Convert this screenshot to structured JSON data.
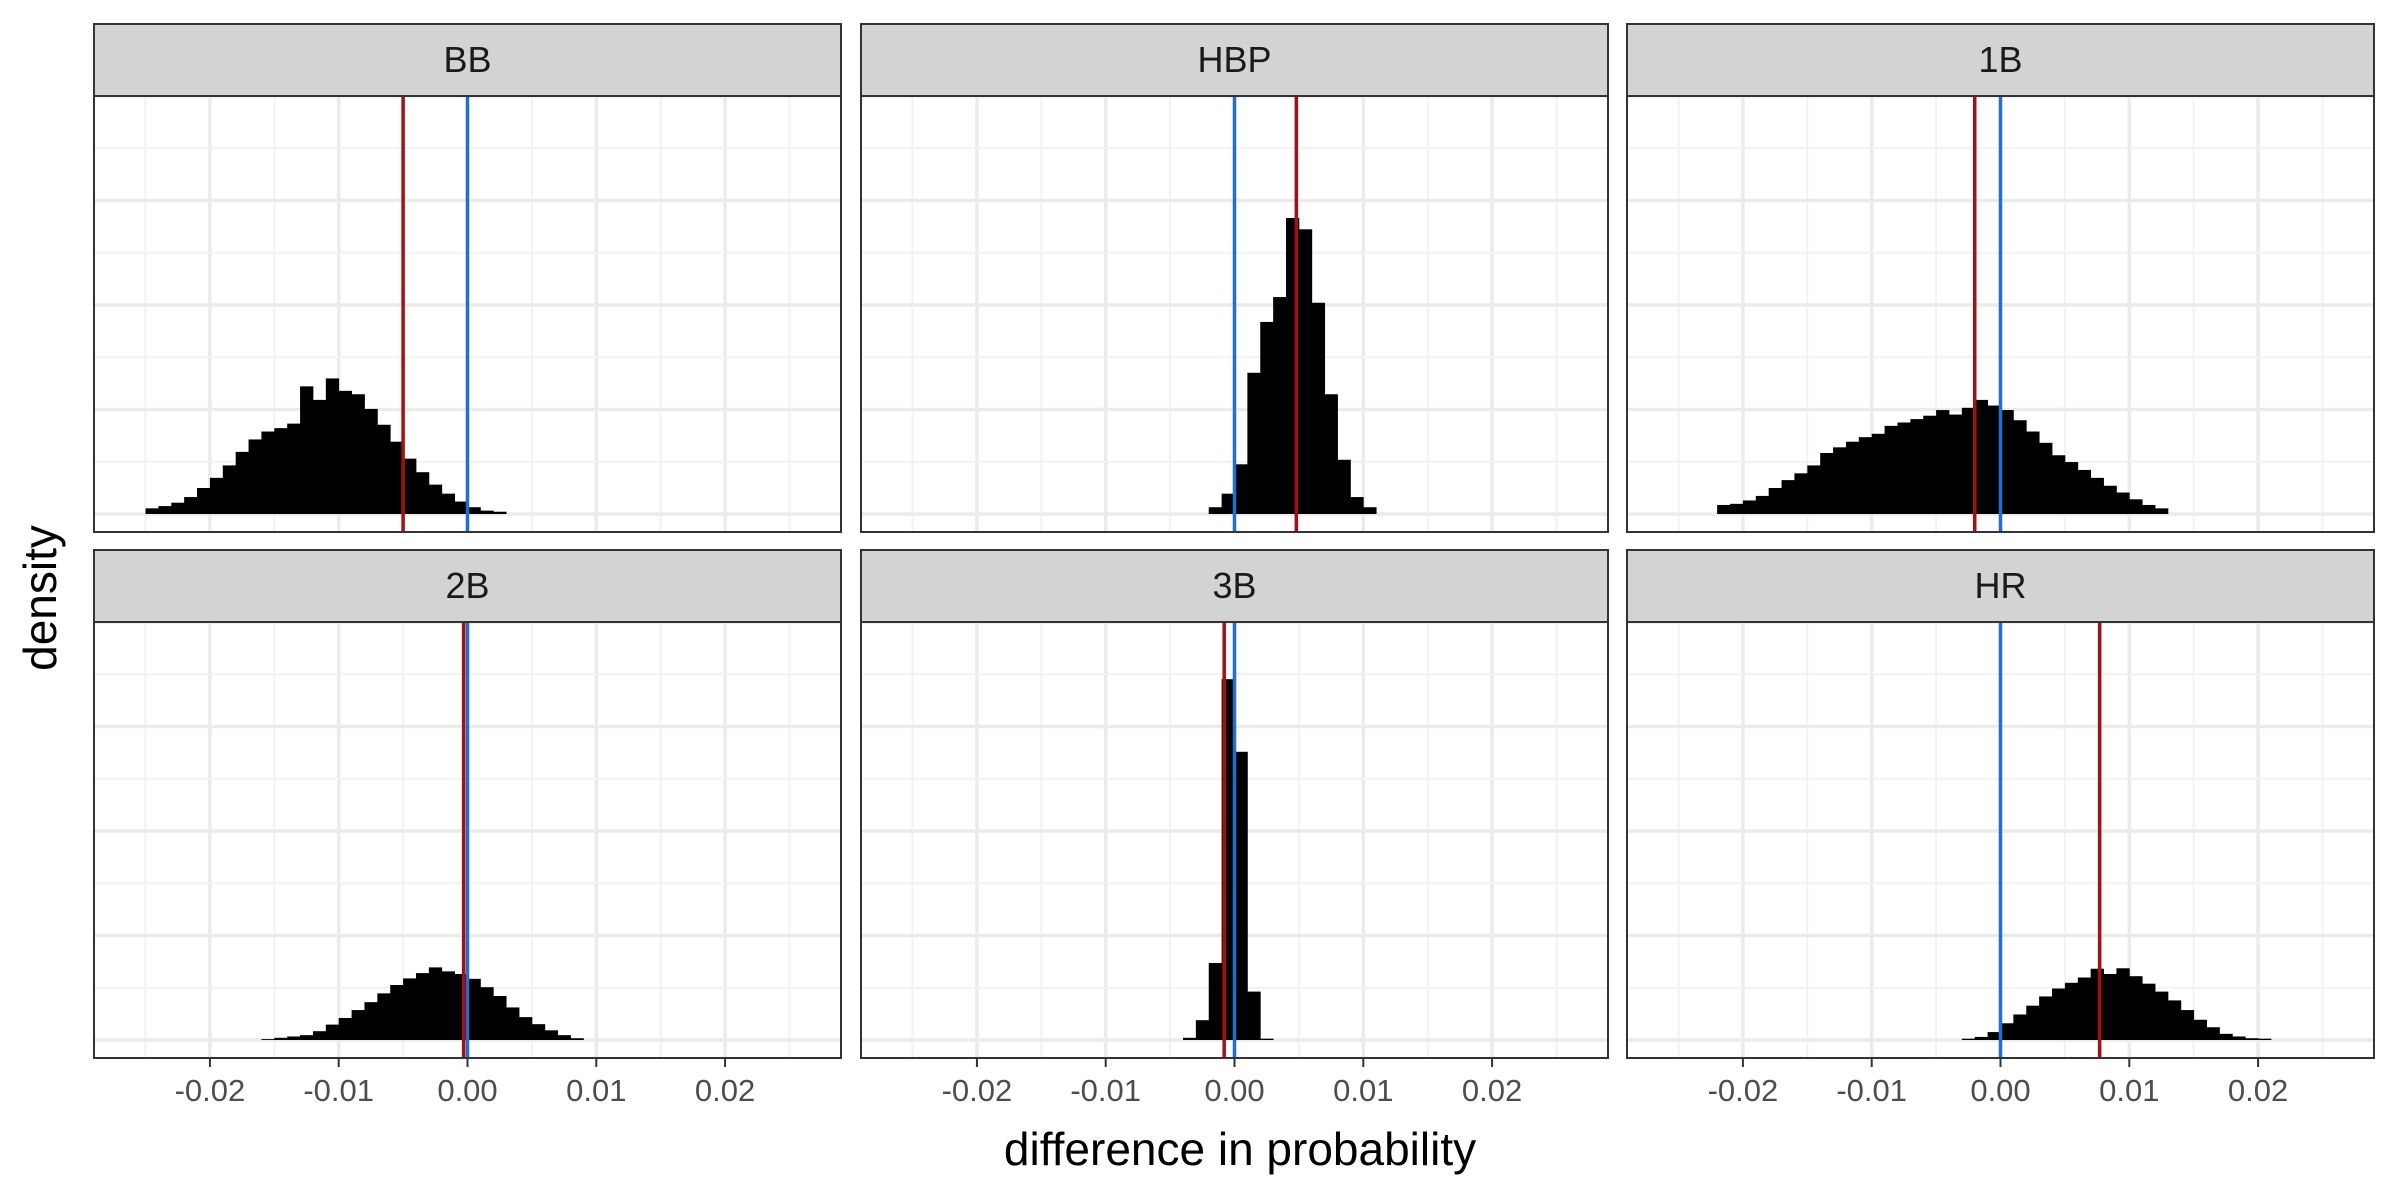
{
  "chart_data": {
    "type": "histogram",
    "facet_layout": "2 rows x 3 columns, shared axes",
    "xlabel": "difference in probability",
    "ylabel": "density",
    "xlim": [
      -0.029,
      0.029
    ],
    "x_ticks": [
      -0.02,
      -0.01,
      0.0,
      0.01,
      0.02
    ],
    "x_tick_labels": [
      "-0.02",
      "-0.01",
      "0.00",
      "0.01",
      "0.02"
    ],
    "y_tick_labels_shown": false,
    "grid": true,
    "bin_width": 0.001,
    "colors": {
      "bars": "#000000",
      "blue_line": "#1f6fd6",
      "red_line": "#a50f15",
      "strip_fill": "#d3d3d3",
      "grid": "#ebebeb"
    },
    "facets": [
      {
        "label": "BB",
        "blue_line": 0.0,
        "red_line": -0.005,
        "bin_start": -0.025,
        "heights": [
          0.5,
          0.7,
          1.0,
          1.5,
          2.3,
          3.2,
          4.3,
          5.5,
          6.6,
          7.3,
          7.6,
          8.0,
          11.3,
          10.1,
          12.0,
          10.9,
          10.6,
          9.3,
          7.9,
          6.4,
          4.9,
          3.7,
          2.6,
          1.8,
          1.1,
          0.6,
          0.3,
          0.2
        ]
      },
      {
        "label": "HBP",
        "blue_line": 0.0,
        "red_line": 0.0048,
        "bin_start": -0.002,
        "heights": [
          0.6,
          1.8,
          4.4,
          12.5,
          17.0,
          19.2,
          26.2,
          25.2,
          18.7,
          10.6,
          4.8,
          1.5,
          0.6
        ]
      },
      {
        "label": "1B",
        "blue_line": 0.0,
        "red_line": -0.002,
        "bin_start": -0.022,
        "heights": [
          0.8,
          0.9,
          1.2,
          1.6,
          2.3,
          3.0,
          3.6,
          4.3,
          5.4,
          5.9,
          6.4,
          6.8,
          7.1,
          7.8,
          8.1,
          8.4,
          8.7,
          9.2,
          8.8,
          9.4,
          10.1,
          9.6,
          9.2,
          8.3,
          7.3,
          6.3,
          5.2,
          4.6,
          3.9,
          3.2,
          2.5,
          1.9,
          1.3,
          0.8,
          0.5
        ]
      },
      {
        "label": "2B",
        "blue_line": 0.0,
        "red_line": -0.0003,
        "bin_start": -0.016,
        "heights": [
          0.2,
          0.5,
          0.8,
          1.1,
          2.0,
          3.5,
          5.0,
          6.8,
          8.6,
          10.6,
          12.5,
          14.0,
          15.2,
          16.5,
          15.6,
          15.0,
          13.9,
          12.0,
          10.0,
          7.4,
          5.2,
          3.6,
          2.2,
          1.1,
          0.4
        ]
      },
      {
        "label": "3B",
        "blue_line": 0.0,
        "red_line": -0.0008,
        "bin_start": -0.004,
        "heights": [
          0.5,
          4.5,
          17.5,
          82.0,
          65.5,
          11.0,
          0.3
        ]
      },
      {
        "label": "HR",
        "blue_line": 0.0,
        "red_line": 0.0077,
        "bin_start": -0.003,
        "heights": [
          0.3,
          0.7,
          1.8,
          3.8,
          5.8,
          7.8,
          9.9,
          11.7,
          13.0,
          14.2,
          16.2,
          15.0,
          16.3,
          14.5,
          12.8,
          11.0,
          9.0,
          6.8,
          4.6,
          2.9,
          1.4,
          0.8,
          0.4,
          0.3
        ]
      }
    ]
  }
}
